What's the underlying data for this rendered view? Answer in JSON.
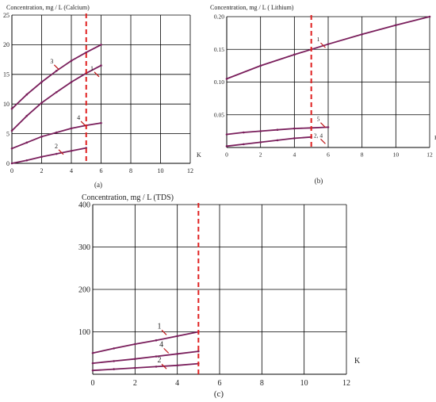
{
  "colors": {
    "curve": "#7a1f5c",
    "grid": "#000000",
    "marker_line": "#e02020",
    "callout": "#c01818"
  },
  "chart_data": [
    {
      "id": "a",
      "type": "line",
      "title": "Concentration, mg / L (Calcium)",
      "caption": "(a)",
      "xlabel": "K",
      "ylabel": "",
      "xlim": [
        0,
        12
      ],
      "ylim": [
        0,
        25
      ],
      "xticks": [
        "0",
        "2",
        "4",
        "6",
        "8",
        "10",
        "12"
      ],
      "yticks": [
        "0",
        "5",
        "10",
        "15",
        "20",
        "25"
      ],
      "grid": true,
      "vline_x": 5,
      "series": [
        {
          "name": "3",
          "x": [
            0,
            1,
            2,
            3,
            4,
            5,
            6
          ],
          "y": [
            9.2,
            11.6,
            13.7,
            15.6,
            17.3,
            18.7,
            20.0
          ]
        },
        {
          "name": "1",
          "x": [
            0,
            1,
            2,
            3,
            4,
            5,
            6
          ],
          "y": [
            5.5,
            8.0,
            10.2,
            12.0,
            13.7,
            15.2,
            16.5
          ]
        },
        {
          "name": "4",
          "x": [
            0,
            1,
            2,
            3,
            4,
            5,
            6
          ],
          "y": [
            2.5,
            3.5,
            4.5,
            5.2,
            5.9,
            6.4,
            6.8
          ]
        },
        {
          "name": "2",
          "x": [
            0,
            1,
            2,
            3,
            4,
            5
          ],
          "y": [
            0.0,
            0.5,
            1.1,
            1.6,
            2.1,
            2.6
          ]
        }
      ],
      "callouts": [
        {
          "label": "3",
          "x": 2.9,
          "y": 16.6
        },
        {
          "label": "1",
          "x": 5.6,
          "y": 15.4
        },
        {
          "label": "4",
          "x": 4.7,
          "y": 7.1
        },
        {
          "label": "2",
          "x": 3.2,
          "y": 2.3
        }
      ]
    },
    {
      "id": "b",
      "type": "line",
      "title": "Concentration, mg / L ( Lithium)",
      "caption": "(b)",
      "xlabel": "K",
      "ylabel": "",
      "xlim": [
        0,
        12
      ],
      "ylim": [
        0,
        0.2
      ],
      "xticks": [
        "0",
        "2",
        "4",
        "6",
        "8",
        "10",
        "12"
      ],
      "yticks": [
        "0.05",
        "0.10",
        "0.15",
        "0.20"
      ],
      "grid": true,
      "vline_x": 5,
      "series": [
        {
          "name": "1",
          "x": [
            0,
            2,
            4,
            5,
            6,
            8,
            10,
            12
          ],
          "y": [
            0.105,
            0.125,
            0.142,
            0.15,
            0.158,
            0.173,
            0.187,
            0.2
          ]
        },
        {
          "name": "5",
          "x": [
            0,
            1,
            2,
            3,
            4,
            5,
            6
          ],
          "y": [
            0.02,
            0.023,
            0.025,
            0.027,
            0.029,
            0.03,
            0.031
          ]
        },
        {
          "name": "2, 4",
          "x": [
            0,
            1,
            2,
            3,
            4,
            5
          ],
          "y": [
            0.002,
            0.005,
            0.008,
            0.011,
            0.014,
            0.016
          ]
        }
      ],
      "callouts": [
        {
          "label": "1",
          "x": 5.6,
          "y": 0.16
        },
        {
          "label": "5",
          "x": 5.6,
          "y": 0.038
        },
        {
          "label": "2, 4",
          "x": 5.6,
          "y": 0.013
        }
      ]
    },
    {
      "id": "c",
      "type": "line",
      "title": "Concentration, mg / L (TDS)",
      "caption": "(c)",
      "xlabel": "K",
      "ylabel": "",
      "xlim": [
        0,
        12
      ],
      "ylim": [
        0,
        400
      ],
      "xticks": [
        "0",
        "2",
        "4",
        "6",
        "8",
        "10",
        "12"
      ],
      "yticks": [
        "100",
        "200",
        "300",
        "400"
      ],
      "grid": true,
      "vline_x": 5,
      "series": [
        {
          "name": "1",
          "x": [
            0,
            1,
            2,
            3,
            4,
            5
          ],
          "y": [
            50,
            61,
            71,
            80,
            90,
            100
          ]
        },
        {
          "name": "4",
          "x": [
            0,
            1,
            2,
            3,
            4,
            5
          ],
          "y": [
            26,
            31,
            36,
            42,
            48,
            54
          ]
        },
        {
          "name": "2",
          "x": [
            0,
            1,
            2,
            3,
            4,
            5
          ],
          "y": [
            9,
            12,
            15,
            18,
            21,
            25
          ]
        }
      ],
      "callouts": [
        {
          "label": "1",
          "x": 3.3,
          "y": 104
        },
        {
          "label": "4",
          "x": 3.4,
          "y": 61
        },
        {
          "label": "2",
          "x": 3.3,
          "y": 24
        }
      ]
    }
  ]
}
